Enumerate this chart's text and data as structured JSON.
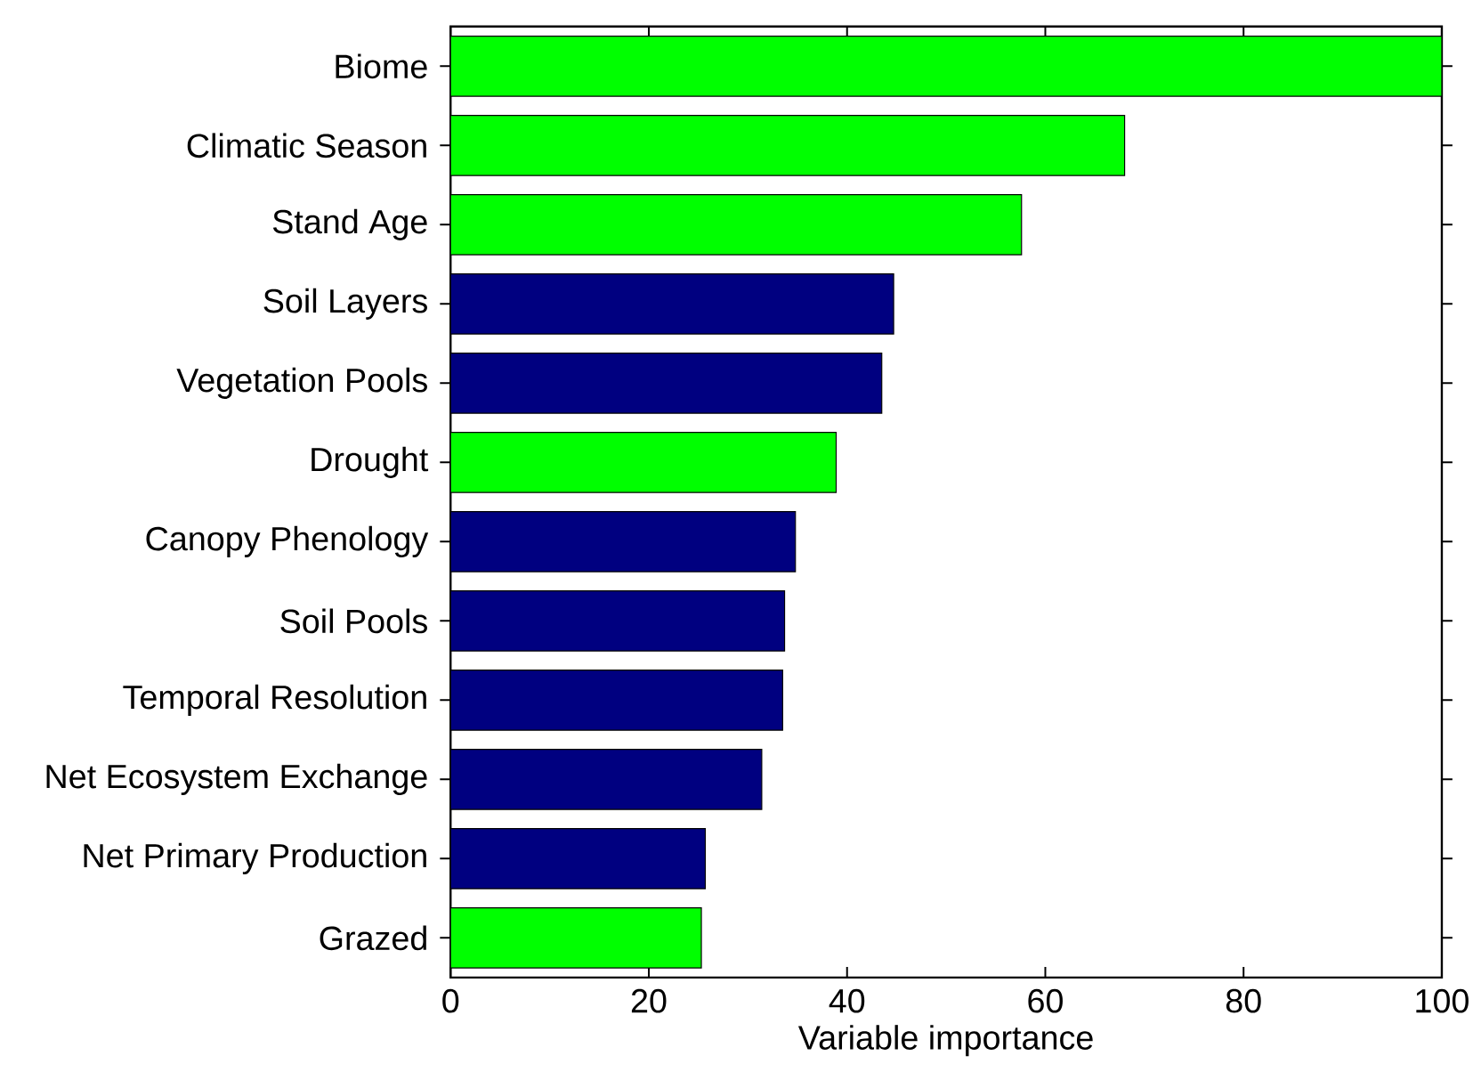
{
  "chart_data": {
    "type": "bar",
    "orientation": "horizontal",
    "categories": [
      "Biome",
      "Climatic Season",
      "Stand Age",
      "Soil Layers",
      "Vegetation Pools",
      "Drought",
      "Canopy Phenology",
      "Soil Pools",
      "Temporal Resolution",
      "Net Ecosystem Exchange",
      "Net Primary Production",
      "Grazed"
    ],
    "values": [
      100,
      68,
      57.6,
      44.7,
      43.5,
      38.9,
      34.8,
      33.7,
      33.5,
      31.4,
      25.7,
      25.3
    ],
    "colors": [
      "#00ff00",
      "#00ff00",
      "#00ff00",
      "#000080",
      "#000080",
      "#00ff00",
      "#000080",
      "#000080",
      "#000080",
      "#000080",
      "#000080",
      "#00ff00"
    ],
    "xlim": [
      0,
      100
    ],
    "xticks": [
      0,
      20,
      40,
      60,
      80,
      100
    ],
    "xlabel": "Variable importance"
  }
}
